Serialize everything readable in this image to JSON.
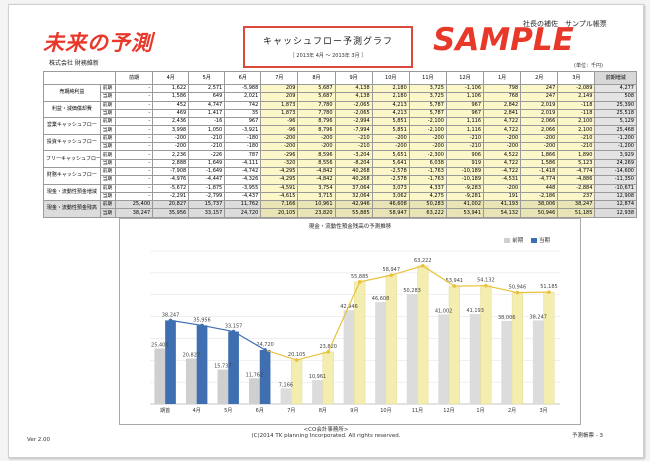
{
  "header": {
    "brand_logo": "未来の予測",
    "company": "株式会社 財務維新",
    "title": "キャッシュフロー予測グラフ",
    "period": "［ 2013年 4月 ～ 2013年 3月 ］",
    "watermark": "SAMPLE",
    "top_right": "社長の補佐　サンプル帳票",
    "unit": "(単位：千円)"
  },
  "table": {
    "headers": [
      "",
      "",
      "前期",
      "4月",
      "5月",
      "6月",
      "7月",
      "8月",
      "9月",
      "10月",
      "11月",
      "12月",
      "1月",
      "2月",
      "3月",
      "前期増減"
    ],
    "rows": [
      {
        "label": "売期純利益",
        "kind": "前期",
        "values": [
          "-",
          "1,622",
          "2,571",
          "-5,988",
          "209",
          "5,687",
          "4,138",
          "2,180",
          "3,725",
          "-1,106",
          "798",
          "247",
          "-2,089",
          "4,277"
        ]
      },
      {
        "label": "",
        "kind": "当期",
        "values": [
          "-",
          "1,586",
          "649",
          "2,021",
          "209",
          "5,687",
          "4,138",
          "2,180",
          "3,725",
          "1,106",
          "768",
          "247",
          "2,149",
          "508"
        ]
      },
      {
        "label": "利益・減価償却費",
        "kind": "前期",
        "values": [
          "-",
          "452",
          "4,747",
          "742",
          "1,873",
          "7,780",
          "-2,065",
          "4,213",
          "5,787",
          "967",
          "2,842",
          "2,019",
          "-118",
          "25,390"
        ]
      },
      {
        "label": "",
        "kind": "当期",
        "values": [
          "-",
          "469",
          "1,417",
          "35",
          "1,873",
          "7,780",
          "-2,065",
          "4,213",
          "5,787",
          "967",
          "2,841",
          "2,019",
          "-118",
          "25,518"
        ]
      },
      {
        "label": "営業キャッシュフロー",
        "kind": "前期",
        "values": [
          "-",
          "2,436",
          "-16",
          "967",
          "-96",
          "8,796",
          "-2,994",
          "5,851",
          "-2,100",
          "1,116",
          "4,722",
          "2,066",
          "2,100",
          "5,129"
        ]
      },
      {
        "label": "",
        "kind": "当期",
        "values": [
          "-",
          "3,998",
          "1,050",
          "-3,921",
          "-96",
          "8,796",
          "-7,994",
          "5,851",
          "-2,100",
          "1,116",
          "4,722",
          "2,066",
          "2,100",
          "25,468"
        ]
      },
      {
        "label": "投資キャッシュフロー",
        "kind": "前期",
        "values": [
          "-",
          "-200",
          "-210",
          "-180",
          "-200",
          "-200",
          "-210",
          "-200",
          "-200",
          "-210",
          "-200",
          "-200",
          "-210",
          "-1,200"
        ]
      },
      {
        "label": "",
        "kind": "当期",
        "values": [
          "-",
          "-200",
          "-210",
          "-180",
          "-200",
          "-200",
          "-210",
          "-200",
          "-200",
          "-210",
          "-200",
          "-200",
          "-210",
          "-1,200"
        ]
      },
      {
        "label": "フリーキャッシュフロー",
        "kind": "前期",
        "values": [
          "-",
          "2,236",
          "-226",
          "787",
          "-296",
          "8,596",
          "-3,204",
          "5,651",
          "-2,300",
          "906",
          "4,522",
          "1,866",
          "1,890",
          "3,929"
        ]
      },
      {
        "label": "",
        "kind": "当期",
        "values": [
          "-",
          "2,888",
          "1,649",
          "-4,111",
          "-320",
          "8,556",
          "-8,204",
          "5,641",
          "6,038",
          "919",
          "4,722",
          "1,586",
          "5,123",
          "24,269"
        ]
      },
      {
        "label": "財務キャッシュフロー",
        "kind": "前期",
        "values": [
          "-",
          "-7,908",
          "-1,649",
          "-4,742",
          "-4,295",
          "-4,842",
          "40,268",
          "-2,578",
          "-1,763",
          "-10,189",
          "-4,722",
          "-1,418",
          "-4,774",
          "-14,600"
        ]
      },
      {
        "label": "",
        "kind": "当期",
        "values": [
          "-",
          "-4,976",
          "-4,447",
          "-4,326",
          "-4,295",
          "-4,842",
          "40,268",
          "-2,578",
          "-1,763",
          "-10,189",
          "-4,531",
          "-4,774",
          "-4,886",
          "-11,350"
        ]
      },
      {
        "label": "現金・流動性預金増減",
        "kind": "前期",
        "values": [
          "-",
          "-5,672",
          "-1,875",
          "-3,955",
          "-4,591",
          "3,754",
          "37,064",
          "3,073",
          "4,337",
          "-9,283",
          "-200",
          "448",
          "-2,884",
          "-10,671"
        ]
      },
      {
        "label": "",
        "kind": "当期",
        "values": [
          "-",
          "-2,291",
          "-2,799",
          "-4,437",
          "-4,615",
          "3,715",
          "32,064",
          "3,062",
          "4,275",
          "-9,281",
          "191",
          "-2,186",
          "237",
          "12,908"
        ]
      },
      {
        "label": "現金・流動性預金残高",
        "kind": "前期",
        "values": [
          "25,400",
          "20,827",
          "15,737",
          "11,762",
          "7,166",
          "10,961",
          "42,946",
          "46,608",
          "50,283",
          "41,002",
          "41,193",
          "38,006",
          "38,247",
          "12,874"
        ]
      },
      {
        "label": "",
        "kind": "当期",
        "values": [
          "38,247",
          "35,956",
          "33,157",
          "24,720",
          "20,105",
          "23,820",
          "55,885",
          "58,947",
          "63,222",
          "53,941",
          "54,132",
          "50,946",
          "51,185",
          "12,938"
        ]
      }
    ]
  },
  "chart_data": {
    "type": "bar",
    "title": "現金・流動性預金残高の予測推移",
    "categories": [
      "期首",
      "4月",
      "5月",
      "6月",
      "7月",
      "8月",
      "9月",
      "10月",
      "11月",
      "12月",
      "1月",
      "2月",
      "3月"
    ],
    "series": [
      {
        "name": "前期",
        "values": [
          25400,
          20827,
          15737,
          11762,
          7166,
          10961,
          42946,
          46608,
          50283,
          41002,
          41193,
          38006,
          38247
        ]
      },
      {
        "name": "当期",
        "values": [
          38247,
          35956,
          33157,
          24720,
          20105,
          23820,
          55885,
          58947,
          63222,
          53941,
          54132,
          50946,
          51185
        ]
      }
    ],
    "actual_months": 4,
    "ylim": [
      0,
      70000
    ],
    "grid": true,
    "legend": "top-right",
    "colors": {
      "prev": "#cfcfcf",
      "prev_forecast": "#dcdcdc",
      "curr_actual": "#3f6fb0",
      "curr_forecast": "#f4edb0",
      "line_actual": "#3f6fb0",
      "line_forecast": "#e8c23a"
    }
  },
  "footer": {
    "center_top": "<CO会計事務所>",
    "center_bottom": "(C)2014 TK planning Incorporated. All rights reserved.",
    "version": "Ver 2.00",
    "page": "予測帳票 - 3"
  }
}
